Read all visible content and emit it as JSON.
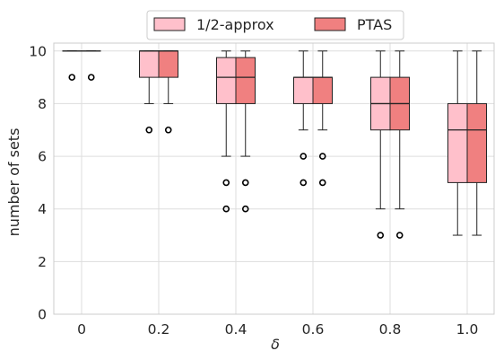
{
  "chart_data": {
    "type": "box",
    "xlabel": "δ",
    "ylabel": "number of sets",
    "ylim": [
      0,
      10.3
    ],
    "yticks": [
      0,
      2,
      4,
      6,
      8,
      10
    ],
    "grid": true,
    "legend_position": "top-center",
    "categories": [
      "0",
      "0.2",
      "0.4",
      "0.6",
      "0.8",
      "1.0"
    ],
    "series": [
      {
        "name": "1/2-approx",
        "color": "#ffc0cb",
        "boxes": [
          {
            "whisker_low": 10,
            "q1": 10,
            "median": 10,
            "q3": 10,
            "whisker_high": 10,
            "outliers": [
              9
            ]
          },
          {
            "whisker_low": 8,
            "q1": 9,
            "median": 10,
            "q3": 10,
            "whisker_high": 10,
            "outliers": [
              7
            ]
          },
          {
            "whisker_low": 6,
            "q1": 8,
            "median": 9,
            "q3": 9.75,
            "whisker_high": 10,
            "outliers": [
              5,
              4
            ]
          },
          {
            "whisker_low": 7,
            "q1": 8,
            "median": 9,
            "q3": 9,
            "whisker_high": 10,
            "outliers": [
              6,
              5
            ]
          },
          {
            "whisker_low": 4,
            "q1": 7,
            "median": 8,
            "q3": 9,
            "whisker_high": 10,
            "outliers": [
              3
            ]
          },
          {
            "whisker_low": 3,
            "q1": 5,
            "median": 7,
            "q3": 8,
            "whisker_high": 10,
            "outliers": []
          }
        ]
      },
      {
        "name": "PTAS",
        "color": "#f08080",
        "boxes": [
          {
            "whisker_low": 10,
            "q1": 10,
            "median": 10,
            "q3": 10,
            "whisker_high": 10,
            "outliers": [
              9
            ]
          },
          {
            "whisker_low": 8,
            "q1": 9,
            "median": 10,
            "q3": 10,
            "whisker_high": 10,
            "outliers": [
              7
            ]
          },
          {
            "whisker_low": 6,
            "q1": 8,
            "median": 9,
            "q3": 9.75,
            "whisker_high": 10,
            "outliers": [
              5,
              4
            ]
          },
          {
            "whisker_low": 7,
            "q1": 8,
            "median": 9,
            "q3": 9,
            "whisker_high": 10,
            "outliers": [
              6,
              5
            ]
          },
          {
            "whisker_low": 4,
            "q1": 7,
            "median": 8,
            "q3": 9,
            "whisker_high": 10,
            "outliers": [
              3
            ]
          },
          {
            "whisker_low": 3,
            "q1": 5,
            "median": 7,
            "q3": 8,
            "whisker_high": 10,
            "outliers": []
          }
        ]
      }
    ]
  }
}
